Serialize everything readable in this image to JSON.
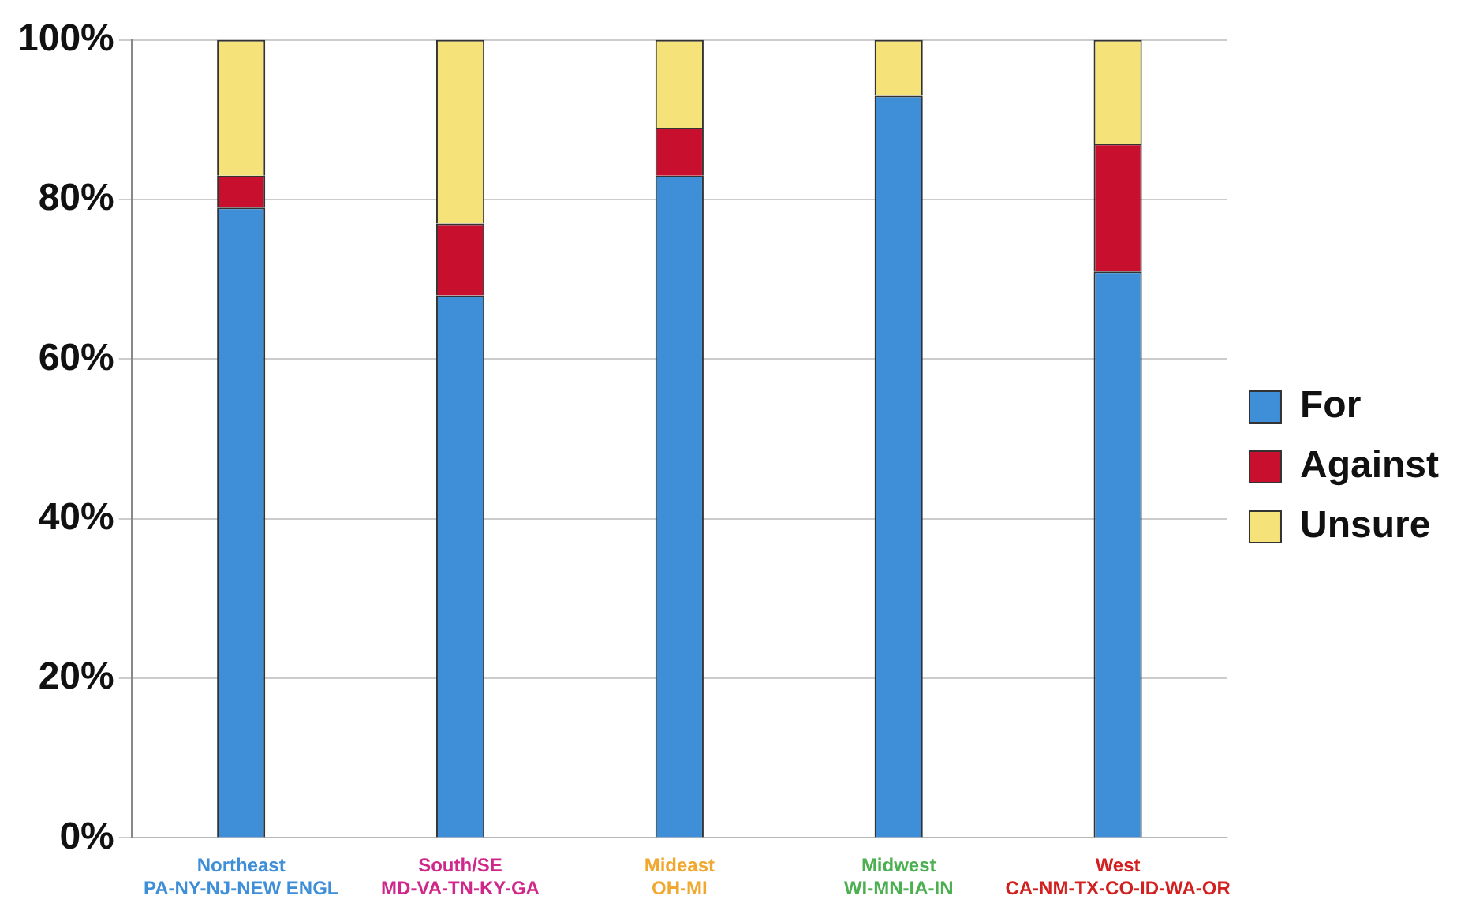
{
  "chart_data": {
    "type": "bar",
    "stacked": true,
    "categories": [
      "Northeast\nPA-NY-NJ-NEW ENGL",
      "South/SE\nMD-VA-TN-KY-GA",
      "Mideast\nOH-MI",
      "Midwest\nWI-MN-IA-IN",
      "West\nCA-NM-TX-CO-ID-WA-OR"
    ],
    "series": [
      {
        "name": "For",
        "color": "#3f8fd8",
        "values": [
          79,
          68,
          83,
          93,
          71
        ]
      },
      {
        "name": "Against",
        "color": "#c8102e",
        "values": [
          4,
          9,
          6,
          0,
          16
        ]
      },
      {
        "name": "Unsure",
        "color": "#f5e37a",
        "values": [
          17,
          23,
          11,
          7,
          13
        ]
      }
    ],
    "ylim": [
      0,
      100
    ],
    "yticks": [
      {
        "value": 0,
        "label": "0%"
      },
      {
        "value": 20,
        "label": "20%"
      },
      {
        "value": 40,
        "label": "40%"
      },
      {
        "value": 60,
        "label": "60%"
      },
      {
        "value": 80,
        "label": "80%"
      },
      {
        "value": 100,
        "label": "100%"
      }
    ],
    "grid": "y",
    "legend": "right"
  }
}
